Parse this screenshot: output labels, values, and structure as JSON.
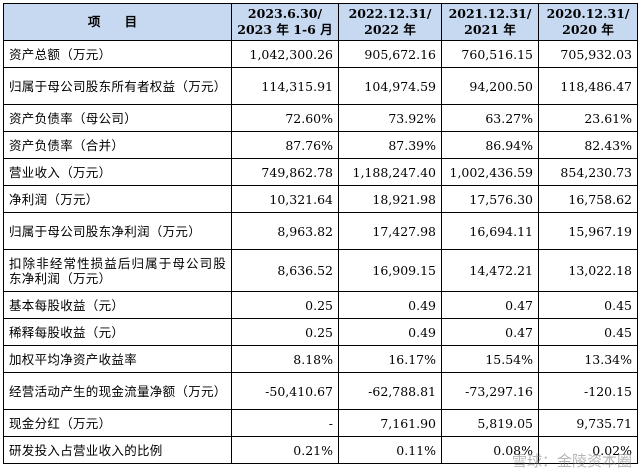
{
  "header": {
    "item": "项 目",
    "periods": [
      [
        "2023.6.30/",
        "2023 年 1-6 月"
      ],
      [
        "2022.12.31/",
        "2022 年"
      ],
      [
        "2021.12.31/",
        "2021 年"
      ],
      [
        "2020.12.31/",
        "2020 年"
      ]
    ]
  },
  "rows": [
    {
      "label": "资产总额（万元）",
      "values": [
        "1,042,300.26",
        "905,672.16",
        "760,516.15",
        "705,932.03"
      ]
    },
    {
      "label": "归属于母公司股东所有者权益（万元）",
      "values": [
        "114,315.91",
        "104,974.59",
        "94,200.50",
        "118,486.47"
      ]
    },
    {
      "label": "资产负债率（母公司）",
      "values": [
        "72.60%",
        "73.92%",
        "63.27%",
        "23.61%"
      ]
    },
    {
      "label": "资产负债率（合并）",
      "values": [
        "87.76%",
        "87.39%",
        "86.94%",
        "82.43%"
      ]
    },
    {
      "label": "营业收入（万元）",
      "values": [
        "749,862.78",
        "1,188,247.40",
        "1,002,436.59",
        "854,230.73"
      ]
    },
    {
      "label": "净利润（万元）",
      "values": [
        "10,321.64",
        "18,921.98",
        "17,576.30",
        "16,758.62"
      ]
    },
    {
      "label": "归属于母公司股东净利润（万元）",
      "values": [
        "8,963.82",
        "17,427.98",
        "16,694.11",
        "15,967.19"
      ]
    },
    {
      "label": "扣除非经常性损益后归属于母公司股东净利润（万元）",
      "values": [
        "8,636.52",
        "16,909.15",
        "14,472.21",
        "13,022.18"
      ]
    },
    {
      "label": "基本每股收益（元）",
      "values": [
        "0.25",
        "0.49",
        "0.47",
        "0.45"
      ]
    },
    {
      "label": "稀释每股收益（元）",
      "values": [
        "0.25",
        "0.49",
        "0.47",
        "0.45"
      ]
    },
    {
      "label": "加权平均净资产收益率",
      "values": [
        "8.18%",
        "16.17%",
        "15.54%",
        "13.34%"
      ]
    },
    {
      "label": "经营活动产生的现金流量净额（万元）",
      "values": [
        "-50,410.67",
        "-62,788.81",
        "-73,297.16",
        "-120.15"
      ]
    },
    {
      "label": "现金分红（万元）",
      "values": [
        "-",
        "7,161.90",
        "5,819.05",
        "9,735.71"
      ]
    },
    {
      "label": "研发投入占营业收入的比例",
      "values": [
        "0.21%",
        "0.11%",
        "0.08%",
        "0.02%"
      ]
    }
  ],
  "watermark": "雪球：金陵资本圈"
}
